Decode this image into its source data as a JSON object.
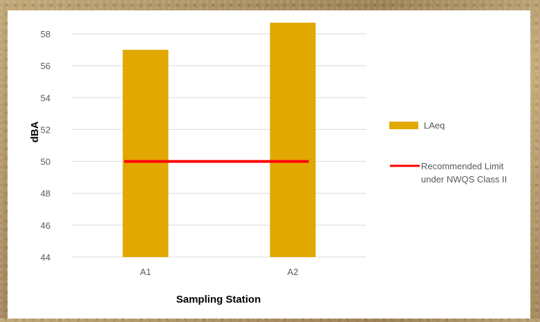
{
  "chart_data": {
    "type": "bar",
    "categories": [
      "A1",
      "A2"
    ],
    "series": [
      {
        "name": "LAeq",
        "type": "bar",
        "values": [
          57.0,
          58.7
        ],
        "color": "#e0a800"
      },
      {
        "name": "Recommended Limit under NWQS Class II",
        "type": "line",
        "values": [
          50,
          50
        ],
        "color": "#ff0000"
      }
    ],
    "xlabel": "Sampling Station",
    "ylabel": "dBA",
    "ylim": [
      44,
      58
    ],
    "yticks": [
      "44",
      "46",
      "48",
      "50",
      "52",
      "54",
      "56",
      "58"
    ],
    "grid": true,
    "legend_position": "right",
    "legend": {
      "bar_label": "LAeq",
      "line_label_lines": [
        "Recommended Limit",
        "under NWQS Class II"
      ]
    }
  }
}
